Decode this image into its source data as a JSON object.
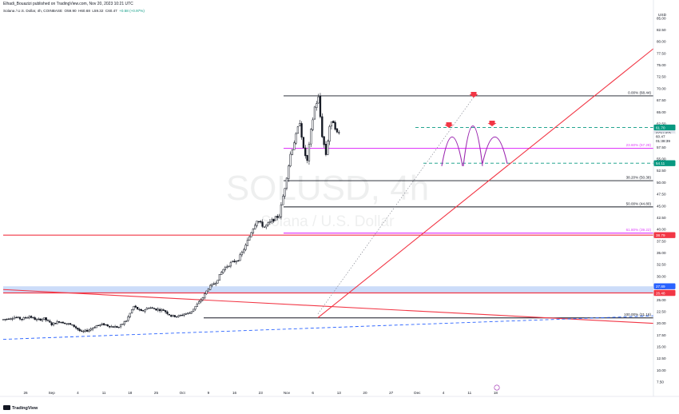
{
  "header": {
    "publisher": "Elhadi_Bouazizi published on TradingView.com, Nov 20, 2023 10:21 UTC",
    "symbol_name": "Solana / U.S. Dollar, 4h, COINBASE",
    "open": "O59.90",
    "high": "H60.68",
    "low": "L59.32",
    "close": "C60.47",
    "change": "+0.58 (+0.97%)"
  },
  "watermark": {
    "symbol": "SOLUSD, 4h",
    "description": "Solana / U.S. Dollar"
  },
  "footer": {
    "brand": "TradingView"
  },
  "colors": {
    "background": "#ffffff",
    "candle": "#131722",
    "trendline": "#f23645",
    "fib_magenta": "#e040fb",
    "fib_black": "#131722",
    "dashed_teal": "#089981",
    "dashed_blue": "#2962ff",
    "zone_fill": "#bbd0f7",
    "price_tag_red": "#f23645",
    "price_tag_teal": "#089981",
    "arrow_red": "#f23645",
    "arc_purple": "#9c27b0"
  },
  "chart_data": {
    "type": "candlestick",
    "symbol": "SOLUSD",
    "exchange": "COINBASE",
    "timeframe": "4h",
    "currency": "USD",
    "ylim": [
      5,
      87.5
    ],
    "y_ticks": [
      7.5,
      10,
      12.5,
      15,
      17.5,
      20,
      22.5,
      25,
      27.5,
      30,
      32.5,
      35,
      37.5,
      40,
      42.5,
      45,
      47.5,
      50,
      52.5,
      55,
      57.5,
      60,
      62.5,
      65,
      67.5,
      70,
      72.5,
      75,
      77.5,
      80,
      82.5,
      85
    ],
    "y_axis_label": "USD",
    "x_ticks": [
      "26",
      "Sep",
      "4",
      "11",
      "18",
      "25",
      "Oct",
      "9",
      "16",
      "23",
      "Nov",
      "6",
      "13",
      "20",
      "27",
      "Dec",
      "4",
      "11",
      "18"
    ],
    "price_path": [
      [
        0,
        20.8
      ],
      [
        3,
        21.3
      ],
      [
        5,
        20.9
      ],
      [
        7,
        21.5
      ],
      [
        9,
        20.7
      ],
      [
        11,
        21.0
      ],
      [
        13,
        19.8
      ],
      [
        15,
        20.4
      ],
      [
        17,
        20.0
      ],
      [
        19,
        19.4
      ],
      [
        21,
        18.1
      ],
      [
        23,
        18.6
      ],
      [
        25,
        19.5
      ],
      [
        27,
        19.8
      ],
      [
        29,
        19.3
      ],
      [
        31,
        19.2
      ],
      [
        33,
        20.6
      ],
      [
        35,
        23.6
      ],
      [
        37,
        22.5
      ],
      [
        39,
        23.4
      ],
      [
        41,
        23.0
      ],
      [
        43,
        22.8
      ],
      [
        45,
        21.6
      ],
      [
        47,
        21.5
      ],
      [
        48.5,
        22.0
      ],
      [
        50,
        22.2
      ],
      [
        52,
        24.0
      ],
      [
        53.5,
        25.5
      ],
      [
        55,
        27.5
      ],
      [
        57,
        28.8
      ],
      [
        59,
        31.5
      ],
      [
        61,
        32.8
      ],
      [
        63,
        33.6
      ],
      [
        65,
        36.5
      ],
      [
        66.5,
        39.5
      ],
      [
        68,
        42.0
      ],
      [
        70,
        40.5
      ],
      [
        72,
        41.8
      ],
      [
        74,
        43.0
      ],
      [
        75.5,
        49.0
      ],
      [
        77,
        56.0
      ],
      [
        78.5,
        60.0
      ],
      [
        79.5,
        63.0
      ],
      [
        80.5,
        57.0
      ],
      [
        81.5,
        54.5
      ],
      [
        82.5,
        61.0
      ],
      [
        83.5,
        66.0
      ],
      [
        84.5,
        68.0
      ],
      [
        85.5,
        60.0
      ],
      [
        86.5,
        56.0
      ],
      [
        87.5,
        62.0
      ],
      [
        88.5,
        63.0
      ],
      [
        89.5,
        60.5
      ],
      [
        90,
        60.47
      ]
    ],
    "fib_levels": [
      {
        "label": "0.00% (68.44)",
        "price": 68.44,
        "color": "#131722"
      },
      {
        "label": "23.60% (57.28)",
        "price": 57.28,
        "color": "#e040fb"
      },
      {
        "label": "38.20% (50.38)",
        "price": 50.38,
        "color": "#131722"
      },
      {
        "label": "50.00% (44.80)",
        "price": 44.8,
        "color": "#131722"
      },
      {
        "label": "61.80% (39.22)",
        "price": 39.22,
        "color": "#e040fb"
      },
      {
        "label": "100.00% (21.16)",
        "price": 21.16,
        "color": "#131722"
      }
    ],
    "horizontal_lines": [
      {
        "price": 38.79,
        "color": "#f23645",
        "style": "solid"
      },
      {
        "price": 61.7,
        "color": "#089981",
        "style": "dashed"
      },
      {
        "price": 54.11,
        "color": "#089981",
        "style": "dashed"
      }
    ],
    "zone": {
      "top": 27.89,
      "bottom": 26.48,
      "color": "#bbd0f7"
    },
    "price_tags": [
      {
        "text": "61.70",
        "price": 61.7,
        "color": "#089981"
      },
      {
        "text": "SOLUSD",
        "price": 60.47,
        "color": "#e0e3eb",
        "text_color": "#131722"
      },
      {
        "text": "60.47",
        "price": 59.8,
        "color": "#ffffff",
        "text_color": "#131722"
      },
      {
        "text": "01:38:39",
        "price": 58.9,
        "color": "#ffffff",
        "text_color": "#131722"
      },
      {
        "text": "54.11",
        "price": 54.11,
        "color": "#089981"
      },
      {
        "text": "38.79",
        "price": 38.79,
        "color": "#f23645"
      },
      {
        "text": "27.89",
        "price": 27.89,
        "color": "#2962ff"
      },
      {
        "text": "26.48",
        "price": 26.48,
        "color": "#f23645"
      }
    ],
    "annotations": [
      "head-and-shoulders pattern",
      "ascending trendline",
      "descending trendline",
      "rising dashed support"
    ]
  }
}
